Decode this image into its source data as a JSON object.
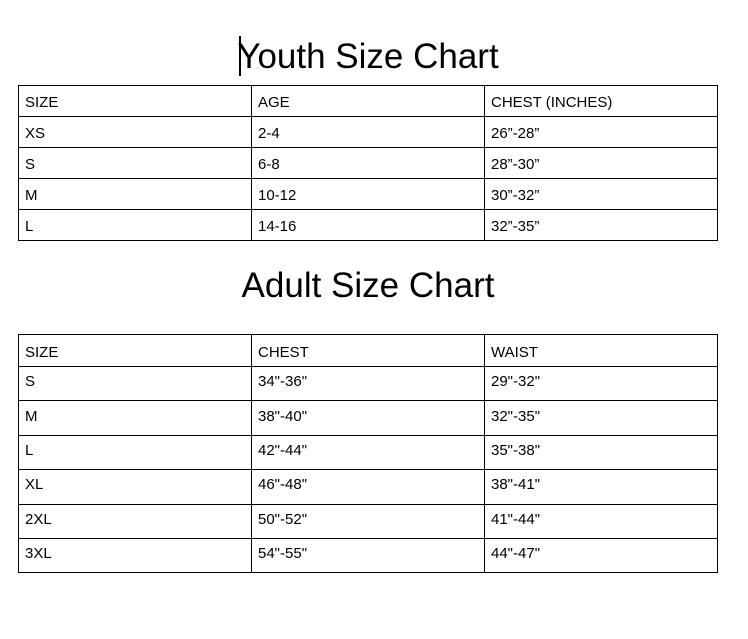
{
  "youth": {
    "title": "Youth Size Chart",
    "headers": [
      "SIZE",
      "AGE",
      "CHEST (INCHES)"
    ],
    "rows": [
      [
        "XS",
        "2-4",
        "26”-28”"
      ],
      [
        "S",
        "6-8",
        "28”-30”"
      ],
      [
        "M",
        "10-12",
        "30”-32”"
      ],
      [
        "L",
        "14-16",
        "32”-35”"
      ]
    ]
  },
  "adult": {
    "title": "Adult Size Chart",
    "headers": [
      "SIZE",
      "CHEST",
      "WAIST"
    ],
    "rows": [
      [
        "S",
        "34\"-36\"",
        "29\"-32\""
      ],
      [
        "M",
        "38\"-40\"",
        "32\"-35\""
      ],
      [
        "L",
        "42\"-44\"",
        "35\"-38\""
      ],
      [
        "XL",
        "46\"-48\"",
        "38\"-41\""
      ],
      [
        "2XL",
        "50\"-52\"",
        "41\"-44\""
      ],
      [
        "3XL",
        "54\"-55\"",
        "44\"-47\""
      ]
    ]
  }
}
